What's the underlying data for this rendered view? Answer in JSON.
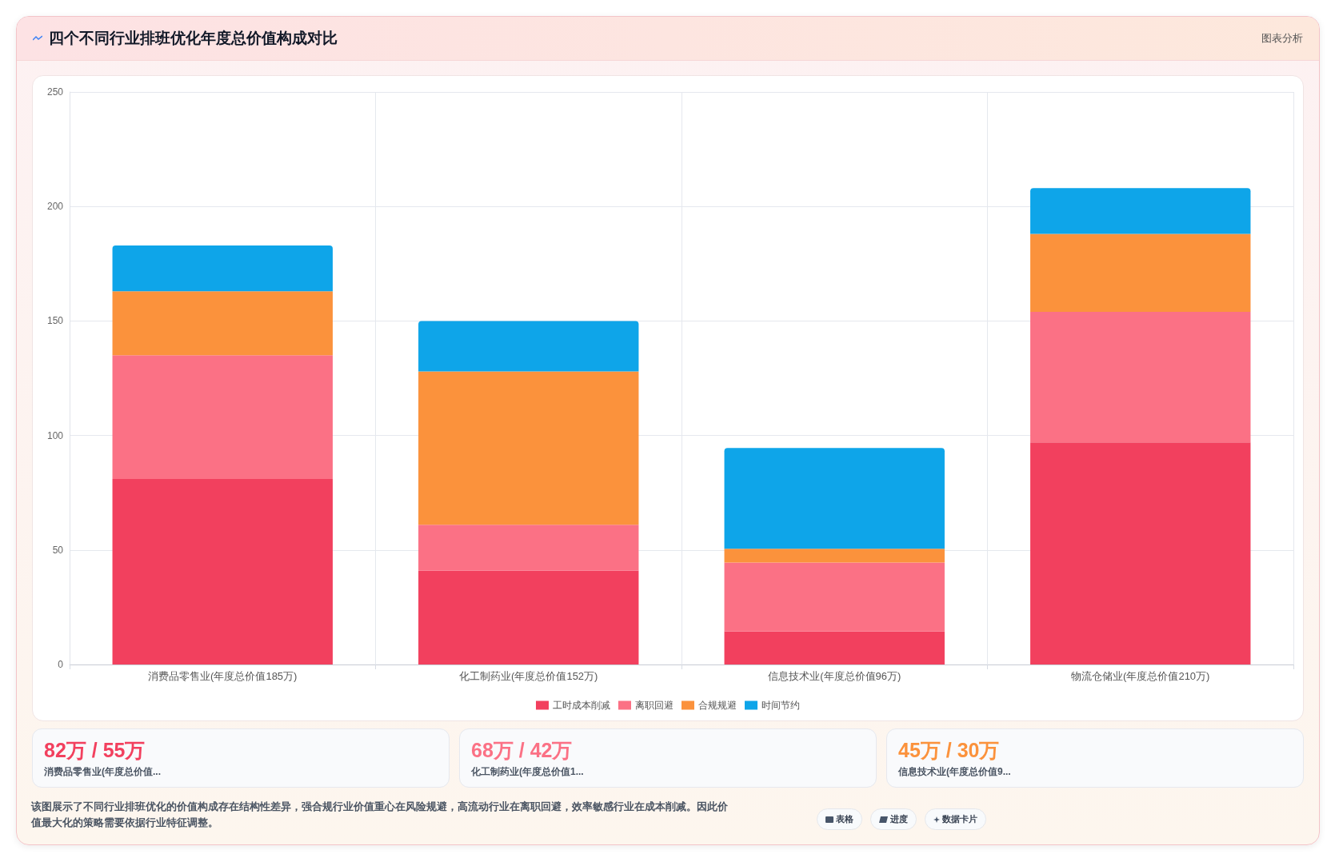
{
  "chart_data": {
    "type": "bar",
    "title": "四个不同行业排班优化年度总价值构成对比",
    "categories": [
      "消费品零售业(年度总价值185万)",
      "化工制药业(年度总价值152万)",
      "信息技术业(年度总价值96万)",
      "物流仓储业(年度总价值210万)"
    ],
    "series": [
      {
        "name": "工时成本削减",
        "color": "#f2405e",
        "values": [
          81,
          41,
          14.5,
          97
        ]
      },
      {
        "name": "离职回避",
        "color": "#fb7185",
        "values": [
          54,
          20,
          30,
          57
        ]
      },
      {
        "name": "合规规避",
        "color": "#fb923c",
        "values": [
          28,
          67,
          6,
          34
        ]
      },
      {
        "name": "时间节约",
        "color": "#0ea5e9",
        "values": [
          20,
          22,
          44,
          20
        ]
      }
    ],
    "stacked": true,
    "ylim": [
      0,
      250
    ],
    "yticks": [
      0,
      50,
      100,
      150,
      200,
      250
    ],
    "grid": true,
    "legend": "bottom",
    "annotations": [
      "图表分析",
      "82万 / 55万",
      "消费品零售业(年度总价值...",
      "68万 / 42万",
      "化工制药业(年度总价值1...",
      "45万 / 30万",
      "信息技术业(年度总价值9...",
      "该图展示了不同行业排班优化的价值构成存在结构性差异，强合规行业价值重心在风险规避，高流动行业在离职回避，效率敏感行业在成本削减。因此价值最大化的策略需要依据行业特征调整。",
      "表格",
      "进度",
      "数据卡片"
    ]
  }
}
